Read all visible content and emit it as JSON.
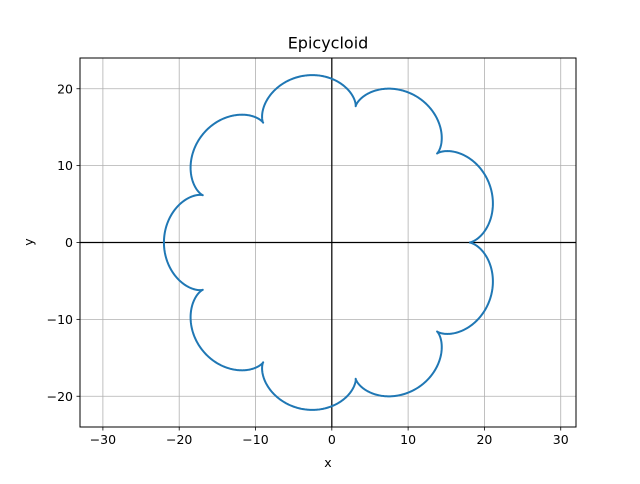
{
  "chart_data": {
    "type": "line",
    "title": "Epicycloid",
    "xlabel": "x",
    "ylabel": "y",
    "xlim": [
      -33,
      32
    ],
    "ylim": [
      -24,
      24
    ],
    "xticks": [
      -30,
      -20,
      -10,
      0,
      10,
      20,
      30
    ],
    "yticks": [
      -20,
      -10,
      0,
      10,
      20
    ],
    "grid": true,
    "axes_lines": {
      "x0": true,
      "y0": true
    },
    "series": [
      {
        "color": "#1f77b4",
        "curve": "epicycloid",
        "params": {
          "R": 18,
          "r": 2,
          "cusps": 9
        },
        "t_range": [
          0,
          6.283185307179586
        ]
      }
    ]
  }
}
